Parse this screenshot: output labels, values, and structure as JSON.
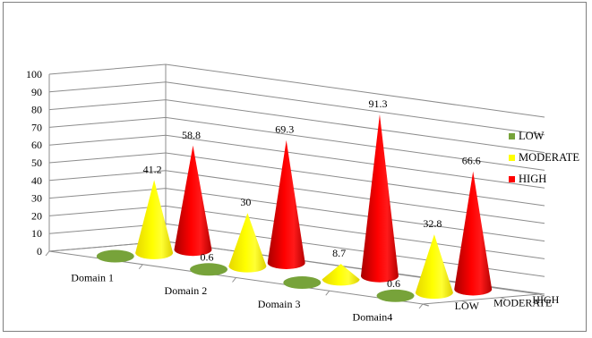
{
  "chart_data": {
    "type": "bar",
    "subtype": "3d-cone",
    "title": "",
    "categories": [
      "Domain 1",
      "Domain 2",
      "Domain 3",
      "Domain4"
    ],
    "series": [
      {
        "name": "LOW",
        "color": "#77a33a",
        "values": [
          0,
          0.6,
          0,
          0.6
        ],
        "labels": [
          "",
          "0.6",
          "",
          "0.6"
        ]
      },
      {
        "name": "MODERATE",
        "color": "#ffff00",
        "values": [
          41.2,
          30,
          8.7,
          32.8
        ],
        "labels": [
          "41.2",
          "30",
          "8.7",
          "32.8"
        ]
      },
      {
        "name": "HIGH",
        "color": "#ff0000",
        "values": [
          58.8,
          69.3,
          91.3,
          66.6
        ],
        "labels": [
          "58.8",
          "69.3",
          "91.3",
          "66.6"
        ]
      }
    ],
    "ylim": [
      0,
      100
    ],
    "yticks": [
      "0",
      "10",
      "20",
      "30",
      "40",
      "50",
      "60",
      "70",
      "80",
      "90",
      "100"
    ],
    "grid": true,
    "legend": "right"
  }
}
